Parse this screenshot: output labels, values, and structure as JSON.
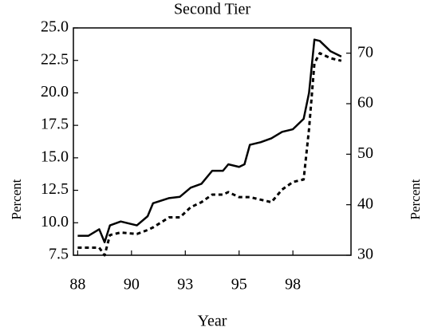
{
  "chart_data": {
    "type": "line",
    "title": "Second Tier",
    "xlabel": "Year",
    "ylabel": "Percent",
    "y2label": "Percent",
    "x": [
      88,
      88.5,
      89,
      89.25,
      89.5,
      90,
      90.75,
      91.25,
      91.5,
      92.25,
      92.75,
      93.25,
      93.75,
      94.25,
      94.75,
      95,
      95.5,
      95.75,
      96,
      96.5,
      97,
      97.5,
      98,
      98.5,
      98.75,
      99,
      99.25,
      99.75,
      100.25
    ],
    "series": [
      {
        "color": "#000000",
        "style": "solid",
        "axis": "y",
        "values": [
          9.0,
          9.0,
          9.5,
          8.5,
          9.8,
          10.1,
          9.8,
          10.5,
          11.5,
          11.9,
          12.0,
          12.7,
          13.0,
          14.0,
          14.0,
          14.5,
          14.3,
          14.5,
          16.0,
          16.2,
          16.5,
          17.0,
          17.2,
          18.0,
          20.0,
          24.1,
          24.0,
          23.2,
          22.8
        ]
      },
      {
        "color": "#000000",
        "style": "dashed",
        "axis": "y2",
        "values": [
          31.5,
          31.5,
          31.5,
          30,
          34,
          34.5,
          34.2,
          35,
          35.5,
          37.5,
          37.5,
          39.5,
          40.5,
          42,
          42,
          42.5,
          41.5,
          41.5,
          41.5,
          41,
          40.5,
          43,
          44.5,
          45,
          55,
          68,
          70,
          69,
          68.5
        ]
      }
    ],
    "xlim": [
      87.8,
      100.7
    ],
    "xticks": [
      {
        "value": 88,
        "label": "88"
      },
      {
        "value": 90.5,
        "label": "90"
      },
      {
        "value": 93,
        "label": "93"
      },
      {
        "value": 95.5,
        "label": "95"
      },
      {
        "value": 98,
        "label": "98"
      }
    ],
    "ylim": [
      7.5,
      25
    ],
    "yticks": [
      7.5,
      {
        "value": 10,
        "label": "10.0"
      },
      12.5,
      {
        "value": 15,
        "label": "15.0"
      },
      17.5,
      {
        "value": 20,
        "label": "20.0"
      },
      22.5,
      {
        "value": 25,
        "label": "25.0"
      }
    ],
    "y2lim": [
      30,
      75
    ],
    "y2ticks": [
      30,
      40,
      50,
      60,
      70
    ],
    "grid": false
  }
}
